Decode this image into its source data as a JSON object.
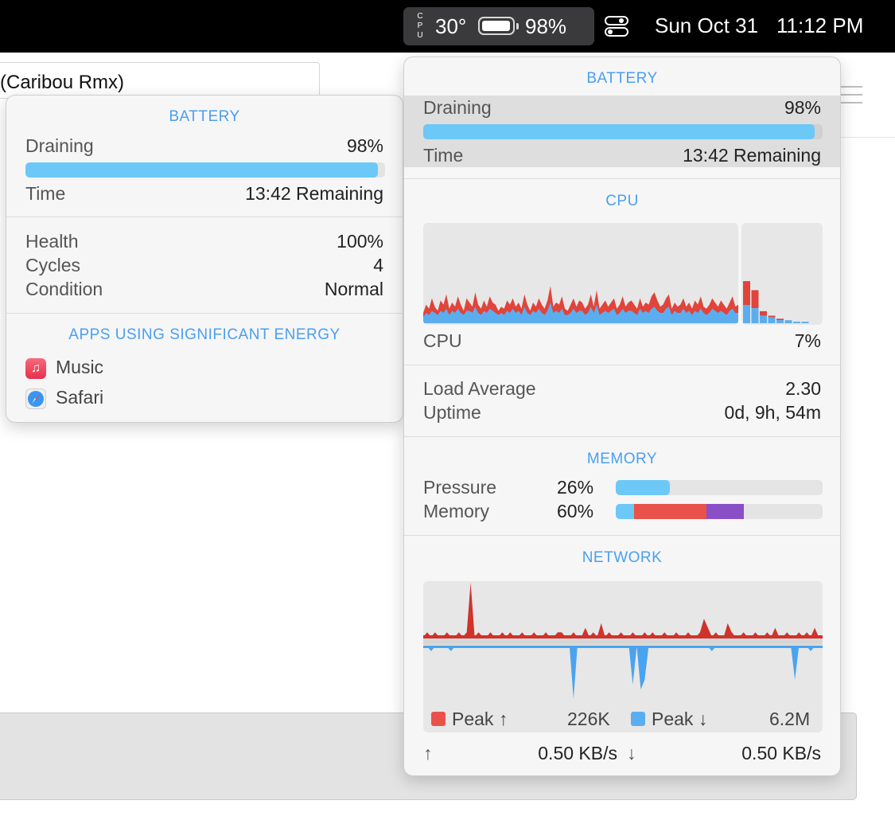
{
  "menubar": {
    "cpu_letters": [
      "C",
      "P",
      "U"
    ],
    "temperature": "30°",
    "battery_percent": "98%",
    "battery_level": 0.98,
    "date": "Sun Oct 31",
    "time": "11:12 PM",
    "icons": [
      "battery-icon",
      "control-center-icon"
    ]
  },
  "background_window": {
    "track_title": "(Caribou Rmx)"
  },
  "battery_popover": {
    "title": "BATTERY",
    "state_label": "Draining",
    "state_value": "98%",
    "level": 0.98,
    "time_label": "Time",
    "time_value": "13:42 Remaining",
    "health_label": "Health",
    "health_value": "100%",
    "cycles_label": "Cycles",
    "cycles_value": "4",
    "condition_label": "Condition",
    "condition_value": "Normal",
    "apps_title": "APPS USING SIGNIFICANT ENERGY",
    "apps": [
      {
        "name": "Music",
        "icon": "music-icon",
        "color": "#f2405a"
      },
      {
        "name": "Safari",
        "icon": "safari-compass-icon",
        "color": "#2f8cf0"
      }
    ]
  },
  "stats_popover": {
    "battery": {
      "title": "BATTERY",
      "state_label": "Draining",
      "state_value": "98%",
      "level": 0.98,
      "time_label": "Time",
      "time_value": "13:42 Remaining"
    },
    "cpu": {
      "title": "CPU",
      "label": "CPU",
      "value": "7%",
      "load_label": "Load Average",
      "load_value": "2.30",
      "uptime_label": "Uptime",
      "uptime_value": "0d, 9h, 54m"
    },
    "memory": {
      "title": "MEMORY",
      "pressure_label": "Pressure",
      "pressure_value": "26%",
      "pressure_level": 0.26,
      "memory_label": "Memory",
      "memory_value": "60%",
      "memory_segments": [
        {
          "name": "wired",
          "fraction": 0.09,
          "color": "#6cc8f7"
        },
        {
          "name": "app",
          "fraction": 0.35,
          "color": "#e9524a"
        },
        {
          "name": "compressed",
          "fraction": 0.18,
          "color": "#8a4fc7"
        }
      ]
    },
    "network": {
      "title": "NETWORK",
      "upload_legend": "Peak ↑",
      "upload_peak": "226K",
      "download_legend": "Peak ↓",
      "download_peak": "6.2M",
      "upload_arrow": "↑",
      "upload_rate": "0.50 KB/s",
      "download_arrow": "↓",
      "download_rate": "0.50 KB/s"
    }
  },
  "chart_data": [
    {
      "type": "area",
      "series": [
        {
          "values": [
            5,
            9,
            7,
            12,
            8,
            6,
            11,
            9,
            14,
            7,
            10,
            8,
            13,
            9,
            6,
            12,
            10,
            8,
            15,
            9,
            7,
            11,
            8,
            13,
            10,
            9,
            6,
            8,
            7,
            11,
            9,
            12,
            8,
            10,
            7,
            14,
            9,
            6,
            10,
            8,
            12,
            9,
            7,
            11,
            18,
            8,
            10,
            9,
            13,
            7,
            6,
            9,
            12,
            8,
            11,
            10,
            7,
            9,
            14,
            8,
            16,
            7,
            9,
            11,
            8,
            10,
            12,
            7,
            9,
            13,
            8,
            10,
            11,
            9,
            7,
            12,
            8,
            10,
            9,
            13,
            15,
            11,
            8,
            9,
            12,
            14,
            7,
            10,
            8,
            9,
            12,
            8,
            10,
            7,
            11,
            9,
            13,
            8,
            7,
            9,
            12,
            10,
            8,
            11,
            9,
            7,
            10,
            13,
            8,
            9
          ]
        },
        {
          "values": [
            3,
            5,
            4,
            6,
            5,
            4,
            6,
            5,
            7,
            4,
            6,
            5,
            7,
            5,
            4,
            6,
            6,
            5,
            8,
            5,
            4,
            6,
            5,
            7,
            6,
            5,
            4,
            5,
            4,
            6,
            5,
            7,
            5,
            6,
            4,
            8,
            5,
            4,
            6,
            5,
            7,
            5,
            4,
            6,
            10,
            5,
            6,
            5,
            7,
            4,
            4,
            5,
            7,
            5,
            6,
            6,
            4,
            5,
            8,
            5,
            9,
            4,
            5,
            6,
            5,
            6,
            7,
            4,
            5,
            7,
            5,
            6,
            6,
            5,
            4,
            7,
            5,
            6,
            5,
            7,
            8,
            6,
            5,
            5,
            7,
            8,
            4,
            6,
            5,
            5,
            7,
            5,
            6,
            4,
            6,
            5,
            7,
            5,
            4,
            5,
            7,
            6,
            5,
            6,
            5,
            4,
            6,
            7,
            5,
            5
          ]
        }
      ],
      "ylim": [
        0,
        100
      ]
    },
    {
      "type": "bar",
      "series": [
        {
          "values": [
            28,
            22,
            8,
            5,
            3,
            2,
            1,
            1
          ]
        },
        {
          "values": [
            12,
            10,
            5,
            4,
            2,
            2,
            1,
            1
          ]
        }
      ],
      "ylim": [
        0,
        100
      ]
    },
    {
      "type": "area",
      "series": [
        {
          "values": [
            0,
            1,
            0,
            1,
            0,
            0,
            1,
            0,
            0,
            1,
            0,
            1,
            12,
            0,
            1,
            0,
            0,
            1,
            0,
            0,
            1,
            0,
            1,
            0,
            0,
            1,
            0,
            0,
            1,
            0,
            0,
            1,
            0,
            0,
            1,
            1,
            0,
            0,
            1,
            0,
            0,
            2,
            0,
            1,
            0,
            3,
            0,
            1,
            0,
            0,
            1,
            0,
            0,
            1,
            0,
            0,
            1,
            0,
            1,
            0,
            0,
            1,
            0,
            0,
            1,
            0,
            0,
            1,
            0,
            0,
            1,
            4,
            2,
            0,
            1,
            0,
            0,
            3,
            1,
            0,
            0,
            1,
            0,
            0,
            1,
            0,
            0,
            1,
            0,
            2,
            0,
            0,
            1,
            0,
            0,
            1,
            0,
            1,
            0,
            2,
            0,
            0
          ]
        },
        {
          "values": [
            0,
            0,
            1,
            0,
            0,
            0,
            0,
            1,
            0,
            0,
            0,
            0,
            0,
            0,
            0,
            0,
            0,
            0,
            0,
            0,
            0,
            0,
            0,
            0,
            0,
            0,
            0,
            0,
            0,
            0,
            0,
            0,
            0,
            0,
            0,
            0,
            0,
            0,
            11,
            0,
            0,
            0,
            0,
            0,
            0,
            0,
            0,
            0,
            0,
            0,
            0,
            0,
            0,
            8,
            0,
            9,
            7,
            0,
            0,
            0,
            0,
            0,
            0,
            0,
            0,
            0,
            0,
            0,
            0,
            0,
            0,
            0,
            0,
            1,
            0,
            0,
            0,
            0,
            0,
            0,
            0,
            0,
            0,
            0,
            0,
            0,
            0,
            0,
            0,
            0,
            0,
            0,
            0,
            0,
            7,
            0,
            0,
            0,
            1,
            0,
            0,
            0
          ]
        }
      ]
    }
  ]
}
